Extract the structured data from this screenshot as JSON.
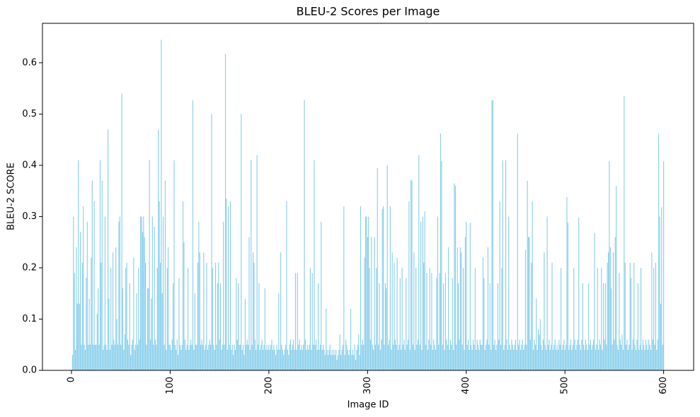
{
  "chart_data": {
    "type": "bar",
    "title": "BLEU-2 Scores per Image",
    "xlabel": "Image ID",
    "ylabel": "BLEU-2 SCORE",
    "color": "#87ceeb",
    "x": [
      1,
      2,
      3,
      4,
      5,
      6,
      7,
      8,
      9,
      10,
      11,
      12,
      13,
      14,
      15,
      16,
      17,
      18,
      19,
      20,
      21,
      22,
      23,
      24,
      25,
      26,
      27,
      28,
      29,
      30,
      31,
      32,
      33,
      34,
      35,
      36,
      37,
      38,
      39,
      40,
      41,
      42,
      43,
      44,
      45,
      46,
      47,
      48,
      49,
      50,
      51,
      52,
      53,
      54,
      55,
      56,
      57,
      58,
      59,
      60,
      61,
      62,
      63,
      64,
      65,
      66,
      67,
      68,
      69,
      70,
      71,
      72,
      73,
      74,
      75,
      76,
      77,
      78,
      79,
      80,
      81,
      82,
      83,
      84,
      85,
      86,
      87,
      88,
      89,
      90,
      91,
      92,
      93,
      94,
      95,
      96,
      97,
      98,
      99,
      100,
      101,
      102,
      103,
      104,
      105,
      106,
      107,
      108,
      109,
      110,
      111,
      112,
      113,
      114,
      115,
      116,
      117,
      118,
      119,
      120,
      121,
      122,
      123,
      124,
      125,
      126,
      127,
      128,
      129,
      130,
      131,
      132,
      133,
      134,
      135,
      136,
      137,
      138,
      139,
      140,
      141,
      142,
      143,
      144,
      145,
      146,
      147,
      148,
      149,
      150,
      151,
      152,
      153,
      154,
      155,
      156,
      157,
      158,
      159,
      160,
      161,
      162,
      163,
      164,
      165,
      166,
      167,
      168,
      169,
      170,
      171,
      172,
      173,
      174,
      175,
      176,
      177,
      178,
      179,
      180,
      181,
      182,
      183,
      184,
      185,
      186,
      187,
      188,
      189,
      190,
      191,
      192,
      193,
      194,
      195,
      196,
      197,
      198,
      199,
      200,
      201,
      202,
      203,
      204,
      205,
      206,
      207,
      208,
      209,
      210,
      211,
      212,
      213,
      214,
      215,
      216,
      217,
      218,
      219,
      220,
      221,
      222,
      223,
      224,
      225,
      226,
      227,
      228,
      229,
      230,
      231,
      232,
      233,
      234,
      235,
      236,
      237,
      238,
      239,
      240,
      241,
      242,
      243,
      244,
      245,
      246,
      247,
      248,
      249,
      250,
      251,
      252,
      253,
      254,
      255,
      256,
      257,
      258,
      259,
      260,
      261,
      262,
      263,
      264,
      265,
      266,
      267,
      268,
      269,
      270,
      271,
      272,
      273,
      274,
      275,
      276,
      277,
      278,
      279,
      280,
      281,
      282,
      283,
      284,
      285,
      286,
      287,
      288,
      289,
      290,
      291,
      292,
      293,
      294,
      295,
      296,
      297,
      298,
      299,
      300,
      301,
      302,
      303,
      304,
      305,
      306,
      307,
      308,
      309,
      310,
      311,
      312,
      313,
      314,
      315,
      316,
      317,
      318,
      319,
      320,
      321,
      322,
      323,
      324,
      325,
      326,
      327,
      328,
      329,
      330,
      331,
      332,
      333,
      334,
      335,
      336,
      337,
      338,
      339,
      340,
      341,
      342,
      343,
      344,
      345,
      346,
      347,
      348,
      349,
      350,
      351,
      352,
      353,
      354,
      355,
      356,
      357,
      358,
      359,
      360,
      361,
      362,
      363,
      364,
      365,
      366,
      367,
      368,
      369,
      370,
      371,
      372,
      373,
      374,
      375,
      376,
      377,
      378,
      379,
      380,
      381,
      382,
      383,
      384,
      385,
      386,
      387,
      388,
      389,
      390,
      391,
      392,
      393,
      394,
      395,
      396,
      397,
      398,
      399,
      400,
      401,
      402,
      403,
      404,
      405,
      406,
      407,
      408,
      409,
      410,
      411,
      412,
      413,
      414,
      415,
      416,
      417,
      418,
      419,
      420,
      421,
      422,
      423,
      424,
      425,
      426,
      427,
      428,
      429,
      430,
      431,
      432,
      433,
      434,
      435,
      436,
      437,
      438,
      439,
      440,
      441,
      442,
      443,
      444,
      445,
      446,
      447,
      448,
      449,
      450,
      451,
      452,
      453,
      454,
      455,
      456,
      457,
      458,
      459,
      460,
      461,
      462,
      463,
      464,
      465,
      466,
      467,
      468,
      469,
      470,
      471,
      472,
      473,
      474,
      475,
      476,
      477,
      478,
      479,
      480,
      481,
      482,
      483,
      484,
      485,
      486,
      487,
      488,
      489,
      490,
      491,
      492,
      493,
      494,
      495,
      496,
      497,
      498,
      499,
      500,
      501,
      502,
      503,
      504,
      505,
      506,
      507,
      508,
      509,
      510,
      511,
      512,
      513,
      514,
      515,
      516,
      517,
      518,
      519,
      520,
      521,
      522,
      523,
      524,
      525,
      526,
      527,
      528,
      529,
      530,
      531,
      532,
      533,
      534,
      535,
      536,
      537,
      538,
      539,
      540,
      541,
      542,
      543,
      544,
      545,
      546,
      547,
      548,
      549,
      550,
      551,
      552,
      553,
      554,
      555,
      556,
      557,
      558,
      559,
      560,
      561,
      562,
      563,
      564,
      565,
      566,
      567,
      568,
      569,
      570,
      571,
      572,
      573,
      574,
      575,
      576,
      577,
      578,
      579,
      580,
      581,
      582,
      583,
      584,
      585,
      586,
      587,
      588,
      589,
      590,
      591,
      592,
      593,
      594,
      595,
      596,
      597,
      598,
      599,
      600
    ],
    "values": [
      0.03,
      0.3,
      0.19,
      0.04,
      0.24,
      0.13,
      0.41,
      0.13,
      0.27,
      0.05,
      0.21,
      0.32,
      0.05,
      0.04,
      0.18,
      0.29,
      0.05,
      0.14,
      0.05,
      0.22,
      0.37,
      0.05,
      0.33,
      0.05,
      0.05,
      0.11,
      0.16,
      0.05,
      0.41,
      0.21,
      0.37,
      0.04,
      0.05,
      0.3,
      0.05,
      0.04,
      0.47,
      0.14,
      0.04,
      0.2,
      0.05,
      0.23,
      0.06,
      0.05,
      0.24,
      0.1,
      0.05,
      0.29,
      0.3,
      0.05,
      0.54,
      0.16,
      0.04,
      0.07,
      0.2,
      0.21,
      0.06,
      0.05,
      0.17,
      0.03,
      0.05,
      0.06,
      0.22,
      0.04,
      0.05,
      0.15,
      0.05,
      0.2,
      0.06,
      0.3,
      0.3,
      0.27,
      0.3,
      0.26,
      0.21,
      0.05,
      0.16,
      0.16,
      0.41,
      0.06,
      0.14,
      0.3,
      0.05,
      0.28,
      0.06,
      0.05,
      0.2,
      0.47,
      0.33,
      0.21,
      0.645,
      0.15,
      0.3,
      0.05,
      0.37,
      0.04,
      0.2,
      0.24,
      0.05,
      0.05,
      0.04,
      0.06,
      0.17,
      0.41,
      0.05,
      0.04,
      0.06,
      0.03,
      0.18,
      0.05,
      0.04,
      0.05,
      0.33,
      0.25,
      0.06,
      0.04,
      0.05,
      0.2,
      0.04,
      0.05,
      0.06,
      0.05,
      0.527,
      0.04,
      0.15,
      0.05,
      0.05,
      0.21,
      0.29,
      0.23,
      0.05,
      0.06,
      0.05,
      0.23,
      0.04,
      0.05,
      0.21,
      0.04,
      0.05,
      0.06,
      0.05,
      0.5,
      0.2,
      0.05,
      0.04,
      0.21,
      0.05,
      0.17,
      0.21,
      0.06,
      0.17,
      0.04,
      0.05,
      0.29,
      0.05,
      0.617,
      0.335,
      0.04,
      0.32,
      0.05,
      0.33,
      0.04,
      0.05,
      0.03,
      0.05,
      0.04,
      0.18,
      0.06,
      0.17,
      0.05,
      0.05,
      0.5,
      0.04,
      0.05,
      0.03,
      0.14,
      0.05,
      0.06,
      0.05,
      0.26,
      0.04,
      0.41,
      0.05,
      0.23,
      0.21,
      0.06,
      0.04,
      0.42,
      0.05,
      0.17,
      0.04,
      0.05,
      0.06,
      0.04,
      0.05,
      0.16,
      0.04,
      0.05,
      0.04,
      0.05,
      0.04,
      0.05,
      0.06,
      0.04,
      0.05,
      0.04,
      0.03,
      0.05,
      0.04,
      0.15,
      0.04,
      0.23,
      0.05,
      0.04,
      0.03,
      0.04,
      0.05,
      0.33,
      0.04,
      0.03,
      0.05,
      0.06,
      0.04,
      0.05,
      0.06,
      0.04,
      0.19,
      0.04,
      0.19,
      0.05,
      0.06,
      0.04,
      0.05,
      0.04,
      0.05,
      0.527,
      0.06,
      0.04,
      0.05,
      0.04,
      0.05,
      0.2,
      0.04,
      0.19,
      0.05,
      0.41,
      0.05,
      0.06,
      0.04,
      0.17,
      0.04,
      0.05,
      0.29,
      0.04,
      0.05,
      0.04,
      0.03,
      0.12,
      0.04,
      0.03,
      0.04,
      0.05,
      0.03,
      0.04,
      0.03,
      0.04,
      0.03,
      0.04,
      0.02,
      0.03,
      0.04,
      0.07,
      0.03,
      0.04,
      0.05,
      0.32,
      0.03,
      0.06,
      0.05,
      0.04,
      0.03,
      0.04,
      0.12,
      0.03,
      0.04,
      0.03,
      0.05,
      0.02,
      0.04,
      0.05,
      0.07,
      0.03,
      0.32,
      0.05,
      0.06,
      0.05,
      0.22,
      0.3,
      0.3,
      0.26,
      0.3,
      0.2,
      0.06,
      0.26,
      0.05,
      0.04,
      0.26,
      0.05,
      0.2,
      0.395,
      0.05,
      0.17,
      0.04,
      0.06,
      0.315,
      0.32,
      0.05,
      0.17,
      0.16,
      0.4,
      0.05,
      0.06,
      0.32,
      0.04,
      0.23,
      0.05,
      0.21,
      0.06,
      0.05,
      0.22,
      0.04,
      0.05,
      0.18,
      0.04,
      0.2,
      0.05,
      0.06,
      0.04,
      0.18,
      0.05,
      0.06,
      0.33,
      0.04,
      0.372,
      0.37,
      0.05,
      0.23,
      0.04,
      0.2,
      0.05,
      0.06,
      0.42,
      0.05,
      0.29,
      0.04,
      0.3,
      0.21,
      0.31,
      0.05,
      0.19,
      0.04,
      0.06,
      0.2,
      0.05,
      0.19,
      0.04,
      0.06,
      0.05,
      0.04,
      0.18,
      0.3,
      0.05,
      0.19,
      0.462,
      0.408,
      0.05,
      0.17,
      0.04,
      0.19,
      0.06,
      0.05,
      0.24,
      0.04,
      0.06,
      0.05,
      0.18,
      0.04,
      0.365,
      0.36,
      0.05,
      0.24,
      0.17,
      0.06,
      0.24,
      0.23,
      0.05,
      0.2,
      0.04,
      0.26,
      0.29,
      0.05,
      0.06,
      0.04,
      0.288,
      0.05,
      0.04,
      0.06,
      0.05,
      0.2,
      0.04,
      0.06,
      0.05,
      0.04,
      0.06,
      0.05,
      0.05,
      0.22,
      0.18,
      0.04,
      0.05,
      0.06,
      0.24,
      0.05,
      0.17,
      0.04,
      0.527,
      0.527,
      0.05,
      0.06,
      0.04,
      0.05,
      0.17,
      0.06,
      0.33,
      0.05,
      0.2,
      0.41,
      0.04,
      0.05,
      0.41,
      0.06,
      0.04,
      0.3,
      0.05,
      0.04,
      0.06,
      0.05,
      0.04,
      0.05,
      0.06,
      0.04,
      0.462,
      0.05,
      0.06,
      0.04,
      0.05,
      0.06,
      0.04,
      0.05,
      0.235,
      0.05,
      0.37,
      0.26,
      0.26,
      0.06,
      0.21,
      0.33,
      0.04,
      0.06,
      0.05,
      0.14,
      0.04,
      0.08,
      0.07,
      0.1,
      0.05,
      0.04,
      0.06,
      0.23,
      0.05,
      0.04,
      0.3,
      0.05,
      0.06,
      0.04,
      0.05,
      0.21,
      0.04,
      0.05,
      0.06,
      0.04,
      0.05,
      0.04,
      0.06,
      0.05,
      0.2,
      0.04,
      0.05,
      0.06,
      0.04,
      0.05,
      0.338,
      0.288,
      0.04,
      0.05,
      0.06,
      0.04,
      0.05,
      0.2,
      0.06,
      0.04,
      0.05,
      0.06,
      0.298,
      0.05,
      0.04,
      0.06,
      0.17,
      0.05,
      0.04,
      0.06,
      0.05,
      0.04,
      0.17,
      0.05,
      0.06,
      0.04,
      0.05,
      0.06,
      0.268,
      0.04,
      0.05,
      0.2,
      0.04,
      0.06,
      0.05,
      0.2,
      0.04,
      0.17,
      0.06,
      0.17,
      0.05,
      0.21,
      0.23,
      0.408,
      0.24,
      0.16,
      0.05,
      0.23,
      0.06,
      0.26,
      0.36,
      0.05,
      0.04,
      0.19,
      0.06,
      0.05,
      0.07,
      0.04,
      0.535,
      0.21,
      0.05,
      0.06,
      0.04,
      0.05,
      0.21,
      0.18,
      0.04,
      0.06,
      0.21,
      0.05,
      0.04,
      0.06,
      0.17,
      0.04,
      0.05,
      0.2,
      0.04,
      0.06,
      0.05,
      0.04,
      0.06,
      0.05,
      0.04,
      0.06,
      0.05,
      0.04,
      0.23,
      0.06,
      0.2,
      0.05,
      0.21,
      0.04,
      0.06,
      0.462,
      0.3,
      0.13,
      0.318,
      0.05,
      0.408
    ],
    "xlim": [
      -29.4,
      630.4
    ],
    "xticks": [
      0,
      100,
      200,
      300,
      400,
      500,
      600
    ],
    "ylim": [
      0,
      0.677
    ],
    "yticks": [
      {
        "value": 0,
        "label": "0.0"
      },
      0.1,
      0.2,
      0.3,
      0.4,
      0.5,
      0.6
    ]
  }
}
